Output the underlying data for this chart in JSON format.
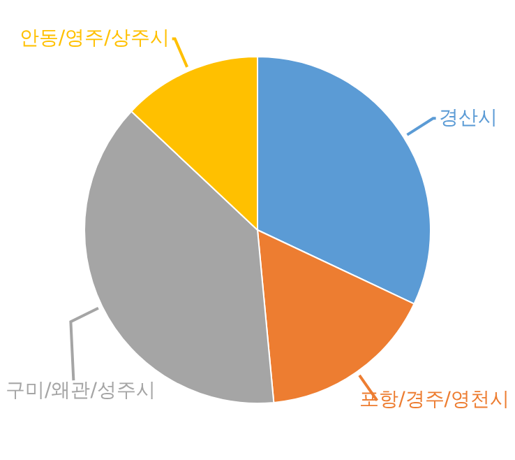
{
  "chart_data": {
    "type": "pie",
    "categories": [
      "경산시",
      "포항/경주/영천시",
      "구미/왜관/성주시",
      "안동/영주/상주시"
    ],
    "values": [
      32,
      16.5,
      38.5,
      13
    ],
    "colors": [
      "#5b9bd5",
      "#ed7d31",
      "#a5a5a5",
      "#ffc000"
    ],
    "legend": false
  }
}
